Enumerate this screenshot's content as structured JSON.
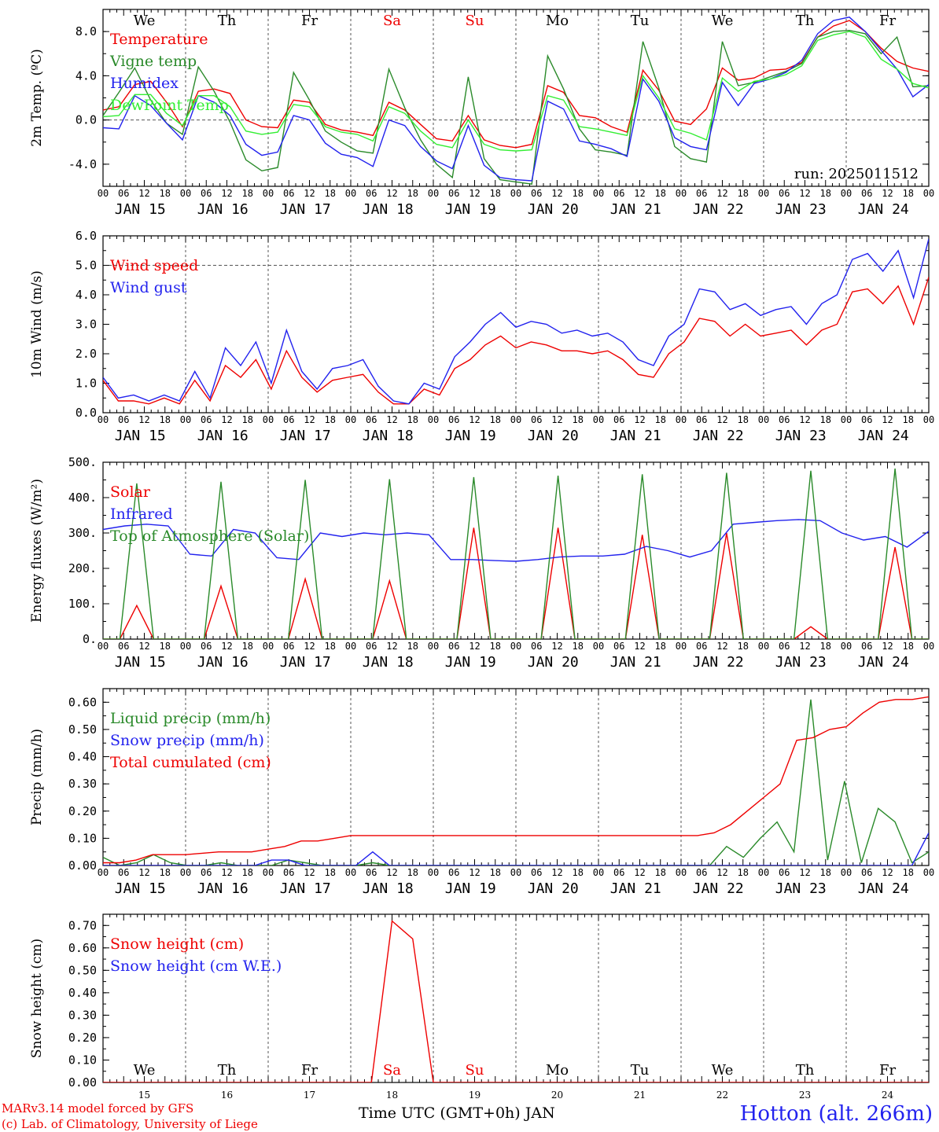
{
  "weekdays": [
    {
      "label": "We",
      "color": "#000000"
    },
    {
      "label": "Th",
      "color": "#000000"
    },
    {
      "label": "Fr",
      "color": "#000000"
    },
    {
      "label": "Sa",
      "color": "#ee0000"
    },
    {
      "label": "Su",
      "color": "#ee0000"
    },
    {
      "label": "Mo",
      "color": "#000000"
    },
    {
      "label": "Tu",
      "color": "#000000"
    },
    {
      "label": "We",
      "color": "#000000"
    },
    {
      "label": "Th",
      "color": "#000000"
    },
    {
      "label": "Fr",
      "color": "#000000"
    }
  ],
  "date_labels": [
    "JAN 15",
    "JAN 16",
    "JAN 17",
    "JAN 18",
    "JAN 19",
    "JAN 20",
    "JAN 21",
    "JAN 22",
    "JAN 23",
    "JAN 24"
  ],
  "day_numbers": [
    "15",
    "16",
    "17",
    "18",
    "19",
    "20",
    "21",
    "22",
    "23",
    "24"
  ],
  "hour_ticks": [
    "00",
    "06",
    "12",
    "18"
  ],
  "footer": {
    "model": "MARv3.14 model forced by GFS",
    "credit": "(c) Lab. of Climatology, University of Liege",
    "axis_title": "Time UTC (GMT+0h) JAN",
    "station": "Hotton (alt. 266m)"
  },
  "chart_data": [
    {
      "type": "line",
      "ylabel": "2m Temp. (ºC)",
      "ylim": [
        -6,
        10
      ],
      "yticks": [
        -4,
        0,
        4,
        8
      ],
      "ytick_labels": [
        "-4.0",
        "0.0",
        "4.0",
        "8.0"
      ],
      "zero_line": 0,
      "annotation": "run: 2025011512",
      "x_hours_step": 6,
      "series": [
        {
          "name": "Temperature",
          "color": "#ee0000",
          "values": [
            0.9,
            1.2,
            3.2,
            3.5,
            1.6,
            -0.6,
            2.6,
            2.8,
            2.4,
            0.0,
            -0.6,
            -0.7,
            1.8,
            1.6,
            -0.4,
            -0.9,
            -1.1,
            -1.4,
            1.6,
            0.9,
            -0.4,
            -1.7,
            -1.9,
            0.4,
            -1.8,
            -2.3,
            -2.5,
            -2.2,
            3.1,
            2.5,
            0.4,
            0.2,
            -0.6,
            -1.1,
            4.5,
            2.7,
            -0.1,
            -0.4,
            1.0,
            4.7,
            3.6,
            3.8,
            4.5,
            4.6,
            5.2,
            7.5,
            8.5,
            9.0,
            8.0,
            6.5,
            5.3,
            4.7,
            4.4
          ]
        },
        {
          "name": "Vigne temp",
          "color": "#2a8a2a",
          "values": [
            0.4,
            2.5,
            4.7,
            1.8,
            -0.3,
            -1.3,
            4.8,
            2.6,
            -0.2,
            -3.6,
            -4.6,
            -4.3,
            4.3,
            1.8,
            -1.0,
            -2.0,
            -2.8,
            -3.0,
            4.6,
            1.1,
            -1.8,
            -4.0,
            -5.2,
            3.9,
            -3.5,
            -5.4,
            -5.6,
            -5.8,
            5.8,
            2.8,
            -0.8,
            -2.7,
            -2.9,
            -3.2,
            7.1,
            2.9,
            -2.4,
            -3.5,
            -3.8,
            7.1,
            3.1,
            3.4,
            3.9,
            4.4,
            5.1,
            7.5,
            8.0,
            8.1,
            7.8,
            6.0,
            7.5,
            3.0,
            3.1
          ]
        },
        {
          "name": "Humidex",
          "color": "#2222ee",
          "values": [
            -0.7,
            -0.8,
            2.2,
            1.3,
            -0.3,
            -1.8,
            2.2,
            1.6,
            0.4,
            -2.2,
            -3.2,
            -2.9,
            0.4,
            0.0,
            -2.1,
            -3.1,
            -3.4,
            -4.2,
            0.0,
            -0.5,
            -2.4,
            -3.7,
            -4.4,
            -0.5,
            -4.1,
            -5.2,
            -5.4,
            -5.5,
            1.7,
            1.0,
            -1.9,
            -2.2,
            -2.6,
            -3.3,
            3.7,
            1.7,
            -1.6,
            -2.4,
            -2.7,
            3.4,
            1.3,
            3.3,
            3.7,
            4.3,
            5.4,
            7.8,
            9.0,
            9.3,
            8.0,
            6.3,
            4.6,
            2.1,
            3.2
          ]
        },
        {
          "name": "DewPoint Temp",
          "color": "#33ee33",
          "values": [
            0.3,
            0.4,
            2.3,
            2.3,
            0.6,
            -0.5,
            2.2,
            2.2,
            1.2,
            -1.0,
            -1.3,
            -1.1,
            1.4,
            1.2,
            -0.6,
            -1.1,
            -1.3,
            -1.9,
            1.2,
            0.6,
            -1.0,
            -2.2,
            -2.5,
            0.0,
            -2.2,
            -2.7,
            -2.8,
            -2.7,
            2.2,
            1.8,
            -0.6,
            -0.8,
            -1.1,
            -1.4,
            4.0,
            2.0,
            -0.8,
            -1.2,
            -1.8,
            3.8,
            2.6,
            3.5,
            3.7,
            4.1,
            4.9,
            7.2,
            7.7,
            8.0,
            7.5,
            5.5,
            4.6,
            3.3,
            2.9
          ]
        }
      ],
      "legend_placement": "top-left"
    },
    {
      "type": "line",
      "ylabel": "10m Wind (m/s)",
      "ylim": [
        0,
        6
      ],
      "yticks": [
        0,
        1,
        2,
        3,
        4,
        5,
        6
      ],
      "ytick_labels": [
        "0.0",
        "1.0",
        "2.0",
        "3.0",
        "4.0",
        "5.0",
        "6.0"
      ],
      "ref_line": 5,
      "x_hours_step": 6,
      "series": [
        {
          "name": "Wind speed",
          "color": "#ee0000",
          "values": [
            1.1,
            0.4,
            0.4,
            0.3,
            0.5,
            0.3,
            1.1,
            0.4,
            1.6,
            1.2,
            1.8,
            0.8,
            2.1,
            1.2,
            0.7,
            1.1,
            1.2,
            1.3,
            0.7,
            0.3,
            0.3,
            0.8,
            0.6,
            1.5,
            1.8,
            2.3,
            2.6,
            2.2,
            2.4,
            2.3,
            2.1,
            2.1,
            2.0,
            2.1,
            1.8,
            1.3,
            1.2,
            2.0,
            2.4,
            3.2,
            3.1,
            2.6,
            3.0,
            2.6,
            2.7,
            2.8,
            2.3,
            2.8,
            3.0,
            4.1,
            4.2,
            3.7,
            4.3,
            3.0,
            4.6
          ]
        },
        {
          "name": "Wind gust",
          "color": "#2222ee",
          "values": [
            1.2,
            0.5,
            0.6,
            0.4,
            0.6,
            0.4,
            1.4,
            0.5,
            2.2,
            1.6,
            2.4,
            1.0,
            2.8,
            1.4,
            0.8,
            1.5,
            1.6,
            1.8,
            0.9,
            0.4,
            0.3,
            1.0,
            0.8,
            1.9,
            2.4,
            3.0,
            3.4,
            2.9,
            3.1,
            3.0,
            2.7,
            2.8,
            2.6,
            2.7,
            2.4,
            1.8,
            1.6,
            2.6,
            3.0,
            4.2,
            4.1,
            3.5,
            3.7,
            3.3,
            3.5,
            3.6,
            3.0,
            3.7,
            4.0,
            5.2,
            5.4,
            4.8,
            5.5,
            3.9,
            5.9
          ]
        }
      ],
      "legend_placement": "top-left"
    },
    {
      "type": "line",
      "ylabel": "Energy fluxes (W/m²)",
      "ylim": [
        0,
        500
      ],
      "yticks": [
        0,
        100,
        200,
        300,
        400,
        500
      ],
      "ytick_labels": [
        "0.",
        "100.",
        "200.",
        "300.",
        "400.",
        "500."
      ],
      "x_hours_step": 6,
      "series": [
        {
          "name": "Solar",
          "color": "#ee0000",
          "values": [
            0,
            0,
            95,
            0,
            0,
            0,
            0,
            150,
            0,
            0,
            0,
            0,
            170,
            0,
            0,
            0,
            0,
            165,
            0,
            0,
            0,
            0,
            315,
            0,
            0,
            0,
            0,
            315,
            0,
            0,
            0,
            0,
            295,
            0,
            0,
            0,
            0,
            300,
            0,
            0,
            0,
            0,
            35,
            0,
            0,
            0,
            0,
            260,
            0,
            0
          ]
        },
        {
          "name": "Infrared",
          "color": "#2222ee",
          "values": [
            310,
            320,
            325,
            320,
            240,
            235,
            310,
            300,
            230,
            225,
            300,
            290,
            300,
            295,
            300,
            295,
            225,
            225,
            222,
            220,
            225,
            232,
            235,
            235,
            240,
            262,
            250,
            232,
            250,
            325,
            330,
            335,
            338,
            335,
            300,
            280,
            290,
            260,
            305
          ]
        },
        {
          "name": "Top of Atmosphere (Solar)",
          "color": "#2a8a2a",
          "values": [
            0,
            0,
            440,
            0,
            0,
            0,
            0,
            445,
            0,
            0,
            0,
            0,
            450,
            0,
            0,
            0,
            0,
            452,
            0,
            0,
            0,
            0,
            458,
            0,
            0,
            0,
            0,
            462,
            0,
            0,
            0,
            0,
            466,
            0,
            0,
            0,
            0,
            470,
            0,
            0,
            0,
            0,
            476,
            0,
            0,
            0,
            0,
            482,
            0,
            0
          ]
        }
      ],
      "legend_placement": "top-left"
    },
    {
      "type": "line",
      "ylabel": "Precip (mm/h)",
      "ylim": [
        0,
        0.65
      ],
      "yticks": [
        0,
        0.1,
        0.2,
        0.3,
        0.4,
        0.5,
        0.6
      ],
      "ytick_labels": [
        "0.00",
        "0.10",
        "0.20",
        "0.30",
        "0.40",
        "0.50",
        "0.60"
      ],
      "x_hours_step": 6,
      "series": [
        {
          "name": "Liquid precip (mm/h)",
          "color": "#2a8a2a",
          "values": [
            0.03,
            0.0,
            0.01,
            0.04,
            0.01,
            0.0,
            0.0,
            0.01,
            0.0,
            0.0,
            0.0,
            0.02,
            0.01,
            0.0,
            0.0,
            0.0,
            0.01,
            0.0,
            0.0,
            0.0,
            0.0,
            0.0,
            0.0,
            0.0,
            0.0,
            0.0,
            0.0,
            0.0,
            0.0,
            0.0,
            0.0,
            0.0,
            0.0,
            0.0,
            0.0,
            0.0,
            0.0,
            0.07,
            0.03,
            0.1,
            0.16,
            0.05,
            0.61,
            0.02,
            0.31,
            0.01,
            0.21,
            0.16,
            0.01,
            0.05
          ]
        },
        {
          "name": "Snow precip (mm/h)",
          "color": "#2222ee",
          "values": [
            0.0,
            0.0,
            0.0,
            0.0,
            0.0,
            0.0,
            0.0,
            0.0,
            0.0,
            0.0,
            0.02,
            0.02,
            0.0,
            0.0,
            0.0,
            0.0,
            0.05,
            0.0,
            0.0,
            0.0,
            0.0,
            0.0,
            0.0,
            0.0,
            0.0,
            0.0,
            0.0,
            0.0,
            0.0,
            0.0,
            0.0,
            0.0,
            0.0,
            0.0,
            0.0,
            0.0,
            0.0,
            0.0,
            0.0,
            0.0,
            0.0,
            0.0,
            0.0,
            0.0,
            0.0,
            0.0,
            0.0,
            0.0,
            0.0,
            0.12
          ]
        },
        {
          "name": "Total cumulated (cm)",
          "color": "#ee0000",
          "values": [
            0.01,
            0.01,
            0.02,
            0.04,
            0.04,
            0.04,
            0.045,
            0.05,
            0.05,
            0.05,
            0.06,
            0.07,
            0.09,
            0.09,
            0.1,
            0.11,
            0.11,
            0.11,
            0.11,
            0.11,
            0.11,
            0.11,
            0.11,
            0.11,
            0.11,
            0.11,
            0.11,
            0.11,
            0.11,
            0.11,
            0.11,
            0.11,
            0.11,
            0.11,
            0.11,
            0.11,
            0.11,
            0.12,
            0.15,
            0.2,
            0.25,
            0.3,
            0.46,
            0.47,
            0.5,
            0.51,
            0.56,
            0.6,
            0.61,
            0.61,
            0.62
          ]
        }
      ],
      "legend_placement": "top-left"
    },
    {
      "type": "line",
      "ylabel": "Snow height (cm)",
      "ylim": [
        0,
        0.75
      ],
      "yticks": [
        0,
        0.1,
        0.2,
        0.3,
        0.4,
        0.5,
        0.6,
        0.7
      ],
      "ytick_labels": [
        "0.00",
        "0.10",
        "0.20",
        "0.30",
        "0.40",
        "0.50",
        "0.60",
        "0.70"
      ],
      "x_hours_step": 6,
      "series": [
        {
          "name": "Snow height (cm)",
          "color": "#ee0000",
          "values": [
            0,
            0,
            0,
            0,
            0,
            0,
            0,
            0,
            0,
            0,
            0,
            0,
            0,
            0,
            0.72,
            0.64,
            0,
            0,
            0,
            0,
            0,
            0,
            0,
            0,
            0,
            0,
            0,
            0,
            0,
            0,
            0,
            0,
            0,
            0,
            0,
            0,
            0,
            0,
            0,
            0,
            0
          ]
        },
        {
          "name": "Snow height (cm W.E.)",
          "color": "#2222ee",
          "values": []
        }
      ],
      "legend_placement": "top-left"
    }
  ]
}
